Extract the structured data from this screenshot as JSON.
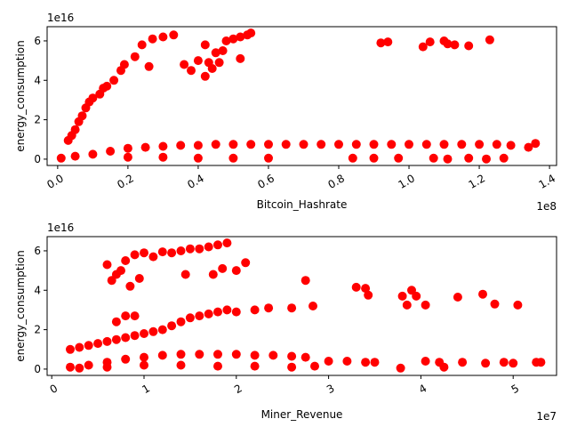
{
  "marker_color": "#ff0000",
  "chart_data": [
    {
      "type": "scatter",
      "xlabel": "Bitcoin_Hashrate",
      "ylabel": "energy_consumption",
      "x_offset_label": "1e8",
      "y_offset_label": "1e16",
      "xlim": [
        -3000000,
        142000000
      ],
      "ylim": [
        -3200000000000000.0,
        6.72e+16
      ],
      "x_ticks": [
        {
          "value": 0,
          "label": "0.0"
        },
        {
          "value": 20000000,
          "label": "0.2"
        },
        {
          "value": 40000000,
          "label": "0.4"
        },
        {
          "value": 60000000,
          "label": "0.6"
        },
        {
          "value": 80000000,
          "label": "0.8"
        },
        {
          "value": 100000000,
          "label": "1.0"
        },
        {
          "value": 120000000,
          "label": "1.2"
        },
        {
          "value": 140000000,
          "label": "1.4"
        }
      ],
      "y_ticks": [
        {
          "value": 0,
          "label": "0"
        },
        {
          "value": 2e+16,
          "label": "2"
        },
        {
          "value": 4e+16,
          "label": "4"
        },
        {
          "value": 6e+16,
          "label": "6"
        }
      ],
      "series": [
        {
          "points": [
            {
              "x": 3000000,
              "y": 9500000000000000.0
            },
            {
              "x": 4000000,
              "y": 1.2e+16
            },
            {
              "x": 5000000,
              "y": 1.5e+16
            },
            {
              "x": 6000000,
              "y": 1.9e+16
            },
            {
              "x": 7000000,
              "y": 2.2e+16
            },
            {
              "x": 8000000,
              "y": 2.6e+16
            },
            {
              "x": 9000000,
              "y": 2.9e+16
            },
            {
              "x": 10000000,
              "y": 3.1e+16
            },
            {
              "x": 12000000,
              "y": 3.3e+16
            },
            {
              "x": 13000000,
              "y": 3.6e+16
            },
            {
              "x": 14000000,
              "y": 3.7e+16
            },
            {
              "x": 16000000,
              "y": 4e+16
            },
            {
              "x": 18000000,
              "y": 4.5e+16
            },
            {
              "x": 19000000,
              "y": 4.8e+16
            },
            {
              "x": 22000000,
              "y": 5.2e+16
            },
            {
              "x": 24000000,
              "y": 5.8e+16
            },
            {
              "x": 27000000,
              "y": 6.1e+16
            },
            {
              "x": 30000000,
              "y": 6.2e+16
            },
            {
              "x": 33000000,
              "y": 6.3e+16
            },
            {
              "x": 26000000,
              "y": 4.7e+16
            },
            {
              "x": 36000000,
              "y": 4.8e+16
            },
            {
              "x": 38000000,
              "y": 4.5e+16
            },
            {
              "x": 40000000,
              "y": 5e+16
            },
            {
              "x": 42000000,
              "y": 5.8e+16
            },
            {
              "x": 44000000,
              "y": 4.6e+16
            },
            {
              "x": 45000000,
              "y": 5.4e+16
            },
            {
              "x": 46000000,
              "y": 4.9e+16
            },
            {
              "x": 47000000,
              "y": 5.5e+16
            },
            {
              "x": 48000000,
              "y": 6e+16
            },
            {
              "x": 50000000,
              "y": 6.1e+16
            },
            {
              "x": 52000000,
              "y": 6.2e+16
            },
            {
              "x": 54000000,
              "y": 6.3e+16
            },
            {
              "x": 55000000,
              "y": 6.4e+16
            },
            {
              "x": 52000000,
              "y": 5.1e+16
            },
            {
              "x": 42000000,
              "y": 4.2e+16
            },
            {
              "x": 43000000,
              "y": 4.9e+16
            },
            {
              "x": 92000000,
              "y": 5.9e+16
            },
            {
              "x": 94000000,
              "y": 5.95e+16
            },
            {
              "x": 104000000,
              "y": 5.7e+16
            },
            {
              "x": 106000000,
              "y": 5.95e+16
            },
            {
              "x": 110000000,
              "y": 6e+16
            },
            {
              "x": 111000000,
              "y": 5.85e+16
            },
            {
              "x": 113000000,
              "y": 5.8e+16
            },
            {
              "x": 117000000,
              "y": 5.75e+16
            },
            {
              "x": 123000000,
              "y": 6.05e+16
            },
            {
              "x": 1000000,
              "y": 500000000000000.0
            },
            {
              "x": 5000000,
              "y": 1500000000000000.0
            },
            {
              "x": 10000000,
              "y": 2500000000000000.0
            },
            {
              "x": 15000000,
              "y": 4000000000000000.0
            },
            {
              "x": 20000000,
              "y": 5500000000000000.0
            },
            {
              "x": 25000000,
              "y": 6000000000000000.0
            },
            {
              "x": 30000000,
              "y": 6500000000000000.0
            },
            {
              "x": 35000000,
              "y": 7000000000000000.0
            },
            {
              "x": 40000000,
              "y": 7000000000000000.0
            },
            {
              "x": 45000000,
              "y": 7500000000000000.0
            },
            {
              "x": 50000000,
              "y": 7500000000000000.0
            },
            {
              "x": 55000000,
              "y": 7500000000000000.0
            },
            {
              "x": 60000000,
              "y": 7500000000000000.0
            },
            {
              "x": 65000000,
              "y": 7500000000000000.0
            },
            {
              "x": 70000000,
              "y": 7500000000000000.0
            },
            {
              "x": 75000000,
              "y": 7500000000000000.0
            },
            {
              "x": 80000000,
              "y": 7500000000000000.0
            },
            {
              "x": 85000000,
              "y": 7500000000000000.0
            },
            {
              "x": 90000000,
              "y": 7500000000000000.0
            },
            {
              "x": 95000000,
              "y": 7500000000000000.0
            },
            {
              "x": 100000000,
              "y": 7500000000000000.0
            },
            {
              "x": 105000000,
              "y": 7500000000000000.0
            },
            {
              "x": 110000000,
              "y": 7500000000000000.0
            },
            {
              "x": 115000000,
              "y": 7500000000000000.0
            },
            {
              "x": 120000000,
              "y": 7500000000000000.0
            },
            {
              "x": 125000000,
              "y": 7500000000000000.0
            },
            {
              "x": 129000000,
              "y": 7000000000000000.0
            },
            {
              "x": 136000000,
              "y": 8000000000000000.0
            },
            {
              "x": 134000000,
              "y": 6000000000000000.0
            },
            {
              "x": 20000000,
              "y": 1000000000000000.0
            },
            {
              "x": 30000000,
              "y": 1000000000000000.0
            },
            {
              "x": 40000000,
              "y": 500000000000000.0
            },
            {
              "x": 50000000,
              "y": 500000000000000.0
            },
            {
              "x": 60000000,
              "y": 500000000000000.0
            },
            {
              "x": 84000000,
              "y": 500000000000000.0
            },
            {
              "x": 90000000,
              "y": 500000000000000.0
            },
            {
              "x": 97000000,
              "y": 500000000000000.0
            },
            {
              "x": 107000000,
              "y": 500000000000000.0
            },
            {
              "x": 111000000,
              "y": 100000000000000.0
            },
            {
              "x": 117000000,
              "y": 500000000000000.0
            },
            {
              "x": 122000000,
              "y": 100000000000000.0
            },
            {
              "x": 127000000,
              "y": 500000000000000.0
            }
          ]
        }
      ]
    },
    {
      "type": "scatter",
      "xlabel": "Miner_Revenue",
      "ylabel": "energy_consumption",
      "x_offset_label": "1e7",
      "y_offset_label": "1e16",
      "xlim": [
        -500000,
        54700000
      ],
      "ylim": [
        -3200000000000000.0,
        6.72e+16
      ],
      "x_ticks": [
        {
          "value": 0,
          "label": "0"
        },
        {
          "value": 10000000,
          "label": "1"
        },
        {
          "value": 20000000,
          "label": "2"
        },
        {
          "value": 30000000,
          "label": "3"
        },
        {
          "value": 40000000,
          "label": "4"
        },
        {
          "value": 50000000,
          "label": "5"
        }
      ],
      "y_ticks": [
        {
          "value": 0,
          "label": "0"
        },
        {
          "value": 2e+16,
          "label": "2"
        },
        {
          "value": 4e+16,
          "label": "4"
        },
        {
          "value": 6e+16,
          "label": "6"
        }
      ],
      "series": [
        {
          "points": [
            {
              "x": 2000000,
              "y": 1e+16
            },
            {
              "x": 3000000,
              "y": 1.1e+16
            },
            {
              "x": 4000000,
              "y": 1.2e+16
            },
            {
              "x": 5000000,
              "y": 1.3e+16
            },
            {
              "x": 6000000,
              "y": 1.4e+16
            },
            {
              "x": 7000000,
              "y": 1.5e+16
            },
            {
              "x": 8000000,
              "y": 1.6e+16
            },
            {
              "x": 9000000,
              "y": 1.7e+16
            },
            {
              "x": 10000000,
              "y": 1.8e+16
            },
            {
              "x": 11000000,
              "y": 1.9e+16
            },
            {
              "x": 12000000,
              "y": 2e+16
            },
            {
              "x": 13000000,
              "y": 2.2e+16
            },
            {
              "x": 14000000,
              "y": 2.4e+16
            },
            {
              "x": 15000000,
              "y": 2.6e+16
            },
            {
              "x": 16000000,
              "y": 2.7e+16
            },
            {
              "x": 17000000,
              "y": 2.8e+16
            },
            {
              "x": 18000000,
              "y": 2.9e+16
            },
            {
              "x": 19000000,
              "y": 3e+16
            },
            {
              "x": 20000000,
              "y": 2.9e+16
            },
            {
              "x": 22000000,
              "y": 3e+16
            },
            {
              "x": 23500000,
              "y": 3.1e+16
            },
            {
              "x": 26000000,
              "y": 3.1e+16
            },
            {
              "x": 27500000,
              "y": 4.5e+16
            },
            {
              "x": 28300000,
              "y": 3.2e+16
            },
            {
              "x": 33000000,
              "y": 4.15e+16
            },
            {
              "x": 34000000,
              "y": 4.1e+16
            },
            {
              "x": 34300000,
              "y": 3.75e+16
            },
            {
              "x": 38000000,
              "y": 3.7e+16
            },
            {
              "x": 38500000,
              "y": 3.25e+16
            },
            {
              "x": 39000000,
              "y": 4e+16
            },
            {
              "x": 39500000,
              "y": 3.7e+16
            },
            {
              "x": 40500000,
              "y": 3.25e+16
            },
            {
              "x": 44000000,
              "y": 3.65e+16
            },
            {
              "x": 46700000,
              "y": 3.8e+16
            },
            {
              "x": 48000000,
              "y": 3.3e+16
            },
            {
              "x": 50500000,
              "y": 3.25e+16
            },
            {
              "x": 8000000,
              "y": 2.7e+16
            },
            {
              "x": 9000000,
              "y": 2.7e+16
            },
            {
              "x": 7000000,
              "y": 2.4e+16
            },
            {
              "x": 6000000,
              "y": 5.3e+16
            },
            {
              "x": 6500000,
              "y": 4.5e+16
            },
            {
              "x": 7000000,
              "y": 4.8e+16
            },
            {
              "x": 7500000,
              "y": 5e+16
            },
            {
              "x": 8000000,
              "y": 5.5e+16
            },
            {
              "x": 9000000,
              "y": 5.8e+16
            },
            {
              "x": 10000000,
              "y": 5.9e+16
            },
            {
              "x": 11000000,
              "y": 5.7e+16
            },
            {
              "x": 12000000,
              "y": 5.95e+16
            },
            {
              "x": 13000000,
              "y": 5.9e+16
            },
            {
              "x": 14000000,
              "y": 6e+16
            },
            {
              "x": 15000000,
              "y": 6.1e+16
            },
            {
              "x": 16000000,
              "y": 6.1e+16
            },
            {
              "x": 17000000,
              "y": 6.2e+16
            },
            {
              "x": 18000000,
              "y": 6.3e+16
            },
            {
              "x": 19000000,
              "y": 6.4e+16
            },
            {
              "x": 14500000,
              "y": 4.8e+16
            },
            {
              "x": 17500000,
              "y": 4.8e+16
            },
            {
              "x": 18500000,
              "y": 5.1e+16
            },
            {
              "x": 20000000,
              "y": 5e+16
            },
            {
              "x": 21000000,
              "y": 5.4e+16
            },
            {
              "x": 8500000,
              "y": 4.2e+16
            },
            {
              "x": 9500000,
              "y": 4.6e+16
            },
            {
              "x": 2000000,
              "y": 1000000000000000.0
            },
            {
              "x": 4000000,
              "y": 2000000000000000.0
            },
            {
              "x": 6000000,
              "y": 3500000000000000.0
            },
            {
              "x": 8000000,
              "y": 5000000000000000.0
            },
            {
              "x": 10000000,
              "y": 6000000000000000.0
            },
            {
              "x": 12000000,
              "y": 7000000000000000.0
            },
            {
              "x": 14000000,
              "y": 7500000000000000.0
            },
            {
              "x": 16000000,
              "y": 7500000000000000.0
            },
            {
              "x": 18000000,
              "y": 7500000000000000.0
            },
            {
              "x": 20000000,
              "y": 7500000000000000.0
            },
            {
              "x": 22000000,
              "y": 7000000000000000.0
            },
            {
              "x": 24000000,
              "y": 7000000000000000.0
            },
            {
              "x": 26000000,
              "y": 6500000000000000.0
            },
            {
              "x": 27500000,
              "y": 6000000000000000.0
            },
            {
              "x": 28500000,
              "y": 1500000000000000.0
            },
            {
              "x": 30000000,
              "y": 4000000000000000.0
            },
            {
              "x": 32000000,
              "y": 4000000000000000.0
            },
            {
              "x": 34000000,
              "y": 3500000000000000.0
            },
            {
              "x": 35000000,
              "y": 3500000000000000.0
            },
            {
              "x": 37800000,
              "y": 500000000000000.0
            },
            {
              "x": 40500000,
              "y": 4000000000000000.0
            },
            {
              "x": 42000000,
              "y": 3500000000000000.0
            },
            {
              "x": 42500000,
              "y": 1000000000000000.0
            },
            {
              "x": 44500000,
              "y": 3500000000000000.0
            },
            {
              "x": 47000000,
              "y": 3000000000000000.0
            },
            {
              "x": 49000000,
              "y": 3500000000000000.0
            },
            {
              "x": 50000000,
              "y": 3000000000000000.0
            },
            {
              "x": 53000000,
              "y": 3500000000000000.0
            },
            {
              "x": 52500000,
              "y": 3500000000000000.0
            },
            {
              "x": 3000000,
              "y": 500000000000000.0
            },
            {
              "x": 6000000,
              "y": 1000000000000000.0
            },
            {
              "x": 10000000,
              "y": 2000000000000000.0
            },
            {
              "x": 14000000,
              "y": 2000000000000000.0
            },
            {
              "x": 18000000,
              "y": 1500000000000000.0
            },
            {
              "x": 22000000,
              "y": 1500000000000000.0
            },
            {
              "x": 26000000,
              "y": 1000000000000000.0
            }
          ]
        }
      ]
    }
  ]
}
